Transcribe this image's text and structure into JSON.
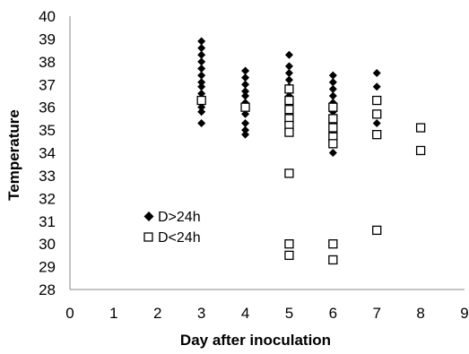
{
  "chart_data": {
    "type": "scatter",
    "title": "",
    "xlabel": "Day after inoculation",
    "ylabel": "Temperature",
    "xlim": [
      0,
      9
    ],
    "ylim": [
      28,
      40
    ],
    "xticks": [
      "0",
      "1",
      "2",
      "3",
      "4",
      "5",
      "6",
      "7",
      "8",
      "9"
    ],
    "yticks": [
      "28",
      "29",
      "30",
      "31",
      "32",
      "33",
      "34",
      "35",
      "36",
      "37",
      "38",
      "39",
      "40"
    ],
    "grid": false,
    "legend_position": "center-left",
    "series": [
      {
        "name": "D>24h",
        "marker": "diamond",
        "color": "#000000",
        "points": [
          {
            "x": 3,
            "y": 38.9
          },
          {
            "x": 3,
            "y": 38.6
          },
          {
            "x": 3,
            "y": 38.3
          },
          {
            "x": 3,
            "y": 38.0
          },
          {
            "x": 3,
            "y": 37.7
          },
          {
            "x": 3,
            "y": 37.4
          },
          {
            "x": 3,
            "y": 37.1
          },
          {
            "x": 3,
            "y": 36.9
          },
          {
            "x": 3,
            "y": 36.6
          },
          {
            "x": 3,
            "y": 36.3
          },
          {
            "x": 3,
            "y": 36.0
          },
          {
            "x": 3,
            "y": 35.8
          },
          {
            "x": 3,
            "y": 35.3
          },
          {
            "x": 4,
            "y": 37.6
          },
          {
            "x": 4,
            "y": 37.3
          },
          {
            "x": 4,
            "y": 37.0
          },
          {
            "x": 4,
            "y": 36.7
          },
          {
            "x": 4,
            "y": 36.5
          },
          {
            "x": 4,
            "y": 36.2
          },
          {
            "x": 4,
            "y": 35.7
          },
          {
            "x": 4,
            "y": 35.3
          },
          {
            "x": 4,
            "y": 35.0
          },
          {
            "x": 4,
            "y": 34.8
          },
          {
            "x": 5,
            "y": 38.3
          },
          {
            "x": 5,
            "y": 37.8
          },
          {
            "x": 5,
            "y": 37.5
          },
          {
            "x": 5,
            "y": 37.2
          },
          {
            "x": 5,
            "y": 36.9
          },
          {
            "x": 5,
            "y": 36.5
          },
          {
            "x": 5,
            "y": 36.2
          },
          {
            "x": 6,
            "y": 37.4
          },
          {
            "x": 6,
            "y": 37.1
          },
          {
            "x": 6,
            "y": 36.8
          },
          {
            "x": 6,
            "y": 36.5
          },
          {
            "x": 6,
            "y": 36.2
          },
          {
            "x": 6,
            "y": 35.8
          },
          {
            "x": 6,
            "y": 35.5
          },
          {
            "x": 6,
            "y": 35.1
          },
          {
            "x": 6,
            "y": 34.8
          },
          {
            "x": 6,
            "y": 34.4
          },
          {
            "x": 6,
            "y": 34.0
          },
          {
            "x": 7,
            "y": 37.5
          },
          {
            "x": 7,
            "y": 36.9
          },
          {
            "x": 7,
            "y": 36.3
          },
          {
            "x": 7,
            "y": 35.3
          }
        ]
      },
      {
        "name": "D<24h",
        "marker": "square",
        "color": "#000000",
        "points": [
          {
            "x": 3,
            "y": 36.3
          },
          {
            "x": 4,
            "y": 36.0
          },
          {
            "x": 5,
            "y": 36.8
          },
          {
            "x": 5,
            "y": 36.3
          },
          {
            "x": 5,
            "y": 35.9
          },
          {
            "x": 5,
            "y": 35.5
          },
          {
            "x": 5,
            "y": 35.2
          },
          {
            "x": 5,
            "y": 34.9
          },
          {
            "x": 5,
            "y": 33.1
          },
          {
            "x": 5,
            "y": 30.0
          },
          {
            "x": 5,
            "y": 29.5
          },
          {
            "x": 6,
            "y": 36.0
          },
          {
            "x": 6,
            "y": 35.5
          },
          {
            "x": 6,
            "y": 35.1
          },
          {
            "x": 6,
            "y": 34.7
          },
          {
            "x": 6,
            "y": 34.4
          },
          {
            "x": 6,
            "y": 30.0
          },
          {
            "x": 6,
            "y": 29.3
          },
          {
            "x": 7,
            "y": 36.3
          },
          {
            "x": 7,
            "y": 35.7
          },
          {
            "x": 7,
            "y": 34.8
          },
          {
            "x": 7,
            "y": 30.6
          },
          {
            "x": 8,
            "y": 35.1
          },
          {
            "x": 8,
            "y": 34.1
          }
        ]
      }
    ]
  }
}
